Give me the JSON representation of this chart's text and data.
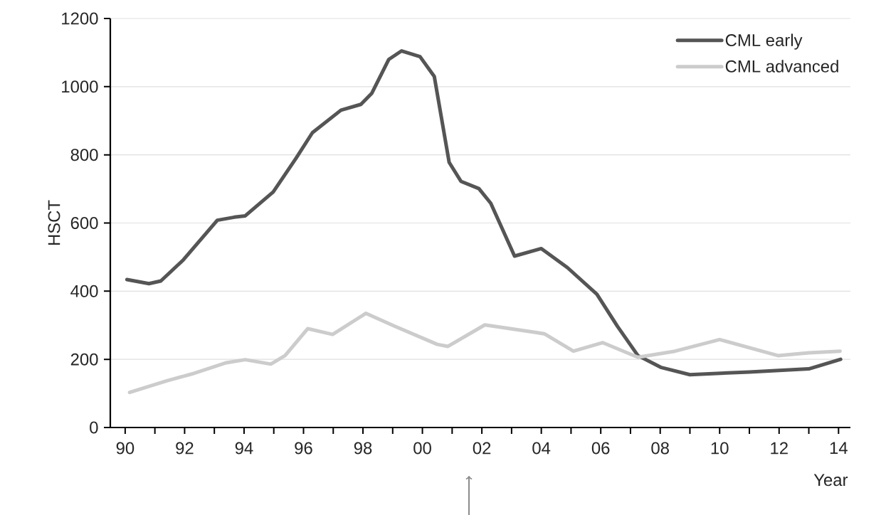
{
  "chart_data": {
    "type": "line",
    "xlabel": "Year",
    "ylabel": "HSCT",
    "xlim": [
      1989.5,
      2014.4
    ],
    "ylim": [
      0,
      1200
    ],
    "xticks": [
      {
        "value": 1990,
        "label": "90"
      },
      {
        "value": 1991,
        "label": null
      },
      {
        "value": 1992,
        "label": "92"
      },
      {
        "value": 1993,
        "label": null
      },
      {
        "value": 1994,
        "label": "94"
      },
      {
        "value": 1995,
        "label": null
      },
      {
        "value": 1996,
        "label": "96"
      },
      {
        "value": 1997,
        "label": null
      },
      {
        "value": 1998,
        "label": "98"
      },
      {
        "value": 1999,
        "label": null
      },
      {
        "value": 2000,
        "label": "00"
      },
      {
        "value": 2001,
        "label": null
      },
      {
        "value": 2002,
        "label": "02"
      },
      {
        "value": 2003,
        "label": null
      },
      {
        "value": 2004,
        "label": "04"
      },
      {
        "value": 2005,
        "label": null
      },
      {
        "value": 2006,
        "label": "06"
      },
      {
        "value": 2007,
        "label": null
      },
      {
        "value": 2008,
        "label": "08"
      },
      {
        "value": 2009,
        "label": null
      },
      {
        "value": 2010,
        "label": "10"
      },
      {
        "value": 2011,
        "label": null
      },
      {
        "value": 2012,
        "label": "12"
      },
      {
        "value": 2013,
        "label": null
      },
      {
        "value": 2014,
        "label": "14"
      }
    ],
    "yticks": [
      0,
      200,
      400,
      600,
      800,
      1000,
      1200
    ],
    "grid": "y",
    "legend": "top right",
    "marker": "none",
    "line_style": "solid",
    "series": [
      {
        "name": "CML early",
        "color": "#555555",
        "x": [
          1990.06,
          1990.8,
          1991.2,
          1991.96,
          1993.1,
          1993.67,
          1994.04,
          1994.98,
          1995.75,
          1996.3,
          1997.26,
          1997.93,
          1998.3,
          1998.87,
          1999.3,
          1999.92,
          2000.4,
          2000.9,
          2001.3,
          2001.9,
          2002.3,
          2003.1,
          2004.0,
          2004.88,
          2005.87,
          2006.56,
          2007.25,
          2008.04,
          2009.0,
          2011.0,
          2013.0,
          2014.07
        ],
        "values": [
          434,
          422,
          430,
          492,
          608,
          617,
          621,
          691,
          790,
          865,
          931,
          948,
          981,
          1080,
          1105,
          1088,
          1030,
          778,
          722,
          701,
          658,
          503,
          525,
          469,
          391,
          297,
          211,
          176,
          155,
          163,
          172,
          200
        ]
      },
      {
        "name": "CML advanced",
        "color": "#cccccc",
        "x": [
          1990.15,
          1991.4,
          1992.24,
          1993.4,
          1994.04,
          1994.9,
          1995.38,
          1996.14,
          1996.98,
          1998.1,
          1999.05,
          2000.5,
          2000.86,
          2002.1,
          2003.8,
          2004.1,
          2005.08,
          2006.07,
          2007.25,
          2008.5,
          2010.0,
          2011.96,
          2013.0,
          2014.05
        ],
        "values": [
          103,
          137,
          157,
          190,
          199,
          186,
          211,
          290,
          273,
          335,
          298,
          244,
          238,
          301,
          279,
          275,
          224,
          249,
          206,
          224,
          258,
          211,
          219,
          224
        ]
      }
    ]
  }
}
